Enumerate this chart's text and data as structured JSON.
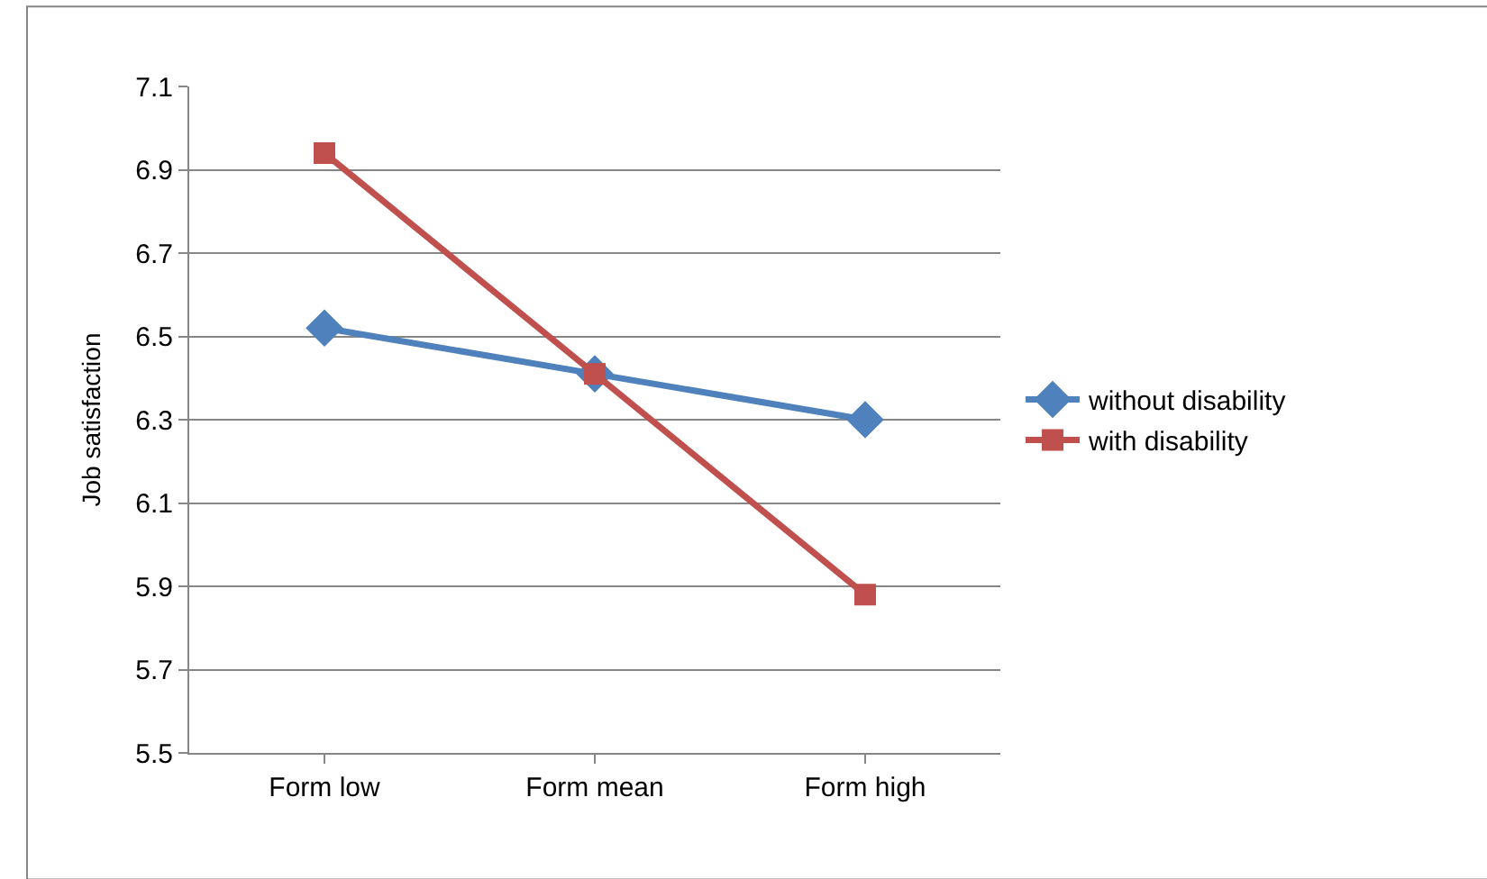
{
  "chart_data": {
    "type": "line",
    "ylabel": "Job satisfaction",
    "categories": [
      "Form low",
      "Form mean",
      "Form high"
    ],
    "series": [
      {
        "name": "without disability",
        "color": "#4f81bd",
        "values": [
          6.52,
          6.41,
          6.3
        ],
        "marker": "diamond"
      },
      {
        "name": "with disability",
        "color": "#c0504d",
        "values": [
          6.94,
          6.41,
          5.88
        ],
        "marker": "square"
      }
    ],
    "ylim": [
      5.5,
      7.1
    ],
    "yticks": [
      5.5,
      5.7,
      5.9,
      6.1,
      6.3,
      6.5,
      6.7,
      6.9,
      7.1
    ],
    "grid": "y",
    "legend": "right",
    "line_style": "solid"
  }
}
